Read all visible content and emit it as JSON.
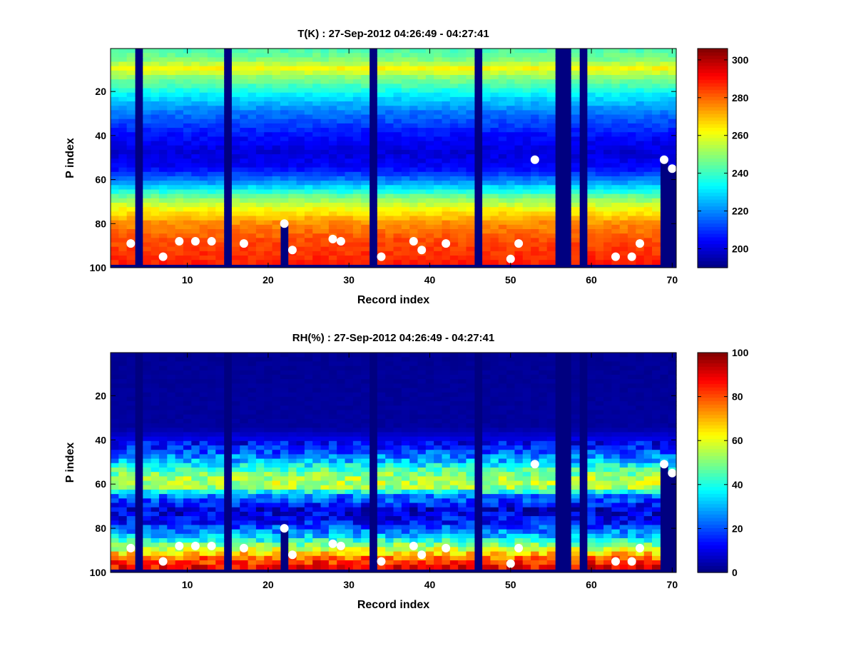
{
  "figure": {
    "background": "#ffffff"
  },
  "chart_data": [
    {
      "type": "heatmap",
      "variable": "T",
      "title": "T(K) : 27-Sep-2012 04:26:49 - 04:27:41",
      "xlabel": "Record index",
      "ylabel": "P index",
      "xlim": [
        0.5,
        70.5
      ],
      "ylim": [
        100,
        0.5
      ],
      "x_ticks": [
        10,
        20,
        30,
        40,
        50,
        60,
        70
      ],
      "y_ticks": [
        20,
        40,
        60,
        80,
        100
      ],
      "colorbar": {
        "min": 190,
        "max": 306,
        "ticks": [
          200,
          220,
          240,
          260,
          280,
          300
        ],
        "colormap": "jet"
      },
      "fill_value_note": "columns/rows at colormap minimum are missing data",
      "missing_records": [
        4,
        15,
        33,
        46,
        56,
        57,
        59
      ],
      "bottom_levels": 98,
      "profile": {
        "levels": [
          1,
          6,
          10,
          14,
          22,
          30,
          40,
          48,
          55,
          62,
          68,
          74,
          80,
          88,
          98
        ],
        "values": [
          241,
          248,
          262,
          250,
          232,
          218,
          206,
          200,
          204,
          222,
          245,
          262,
          275,
          283,
          288
        ]
      },
      "record_surface_levels": {
        "22": 80,
        "69": 50,
        "70": 54
      },
      "markers": [
        {
          "record": 3,
          "level": 89
        },
        {
          "record": 7,
          "level": 95
        },
        {
          "record": 9,
          "level": 88
        },
        {
          "record": 11,
          "level": 88
        },
        {
          "record": 13,
          "level": 88
        },
        {
          "record": 17,
          "level": 89
        },
        {
          "record": 22,
          "level": 80
        },
        {
          "record": 23,
          "level": 92
        },
        {
          "record": 28,
          "level": 87
        },
        {
          "record": 29,
          "level": 88
        },
        {
          "record": 34,
          "level": 95
        },
        {
          "record": 38,
          "level": 88
        },
        {
          "record": 39,
          "level": 92
        },
        {
          "record": 42,
          "level": 89
        },
        {
          "record": 50,
          "level": 96
        },
        {
          "record": 51,
          "level": 89
        },
        {
          "record": 53,
          "level": 51
        },
        {
          "record": 63,
          "level": 95
        },
        {
          "record": 65,
          "level": 95
        },
        {
          "record": 66,
          "level": 89
        },
        {
          "record": 69,
          "level": 51
        },
        {
          "record": 70,
          "level": 55
        }
      ]
    },
    {
      "type": "heatmap",
      "variable": "RH",
      "title": "RH(%) : 27-Sep-2012 04:26:49 - 04:27:41",
      "xlabel": "Record index",
      "ylabel": "P index",
      "xlim": [
        0.5,
        70.5
      ],
      "ylim": [
        100,
        0.5
      ],
      "x_ticks": [
        10,
        20,
        30,
        40,
        50,
        60,
        70
      ],
      "y_ticks": [
        20,
        40,
        60,
        80,
        100
      ],
      "colorbar": {
        "min": 0,
        "max": 100,
        "ticks": [
          0,
          20,
          40,
          60,
          80,
          100
        ],
        "colormap": "jet"
      },
      "fill_value_note": "columns/rows at colormap minimum are missing data",
      "missing_records": [
        4,
        15,
        33,
        46,
        56,
        57,
        59
      ],
      "bottom_levels": 98,
      "profile": {
        "levels": [
          1,
          35,
          44,
          50,
          55,
          59,
          62,
          66,
          72,
          78,
          84,
          90,
          95,
          98
        ],
        "values": [
          2,
          3,
          15,
          30,
          48,
          57,
          52,
          25,
          8,
          14,
          32,
          58,
          82,
          88
        ]
      },
      "record_surface_levels": {
        "22": 80,
        "69": 50,
        "70": 54
      },
      "markers": [
        {
          "record": 3,
          "level": 89
        },
        {
          "record": 7,
          "level": 95
        },
        {
          "record": 9,
          "level": 88
        },
        {
          "record": 11,
          "level": 88
        },
        {
          "record": 13,
          "level": 88
        },
        {
          "record": 17,
          "level": 89
        },
        {
          "record": 22,
          "level": 80
        },
        {
          "record": 23,
          "level": 92
        },
        {
          "record": 28,
          "level": 87
        },
        {
          "record": 29,
          "level": 88
        },
        {
          "record": 34,
          "level": 95
        },
        {
          "record": 38,
          "level": 88
        },
        {
          "record": 39,
          "level": 92
        },
        {
          "record": 42,
          "level": 89
        },
        {
          "record": 50,
          "level": 96
        },
        {
          "record": 51,
          "level": 89
        },
        {
          "record": 53,
          "level": 51
        },
        {
          "record": 63,
          "level": 95
        },
        {
          "record": 65,
          "level": 95
        },
        {
          "record": 66,
          "level": 89
        },
        {
          "record": 69,
          "level": 51
        },
        {
          "record": 70,
          "level": 55
        }
      ]
    }
  ]
}
